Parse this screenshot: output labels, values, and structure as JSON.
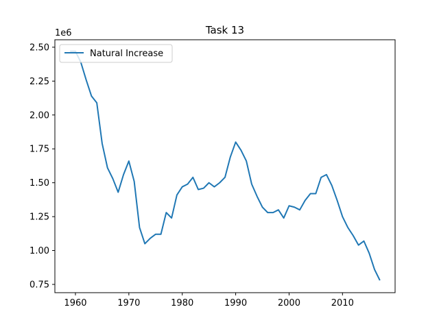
{
  "chart_data": {
    "type": "line",
    "title": "Task 13",
    "xlabel": "",
    "ylabel": "",
    "y_offset_label": "1e6",
    "xlim": [
      1956.15,
      2019.85
    ],
    "ylim": [
      0.689,
      2.555
    ],
    "x_ticks": [
      1960,
      1970,
      1980,
      1990,
      2000,
      2010
    ],
    "y_ticks": [
      0.75,
      1.0,
      1.25,
      1.5,
      1.75,
      2.0,
      2.25,
      2.5
    ],
    "y_tick_labels": [
      "0.75",
      "1.00",
      "1.25",
      "1.50",
      "1.75",
      "2.00",
      "2.25",
      "2.50"
    ],
    "grid": false,
    "legend_position": "upper-left",
    "color": "#1f77b4",
    "series": [
      {
        "name": "Natural Increase",
        "x": [
          1959,
          1960,
          1961,
          1962,
          1963,
          1964,
          1965,
          1966,
          1967,
          1968,
          1969,
          1970,
          1971,
          1972,
          1973,
          1974,
          1975,
          1976,
          1977,
          1978,
          1979,
          1980,
          1981,
          1982,
          1983,
          1984,
          1985,
          1986,
          1987,
          1988,
          1989,
          1990,
          1991,
          1992,
          1993,
          1994,
          1995,
          1996,
          1997,
          1998,
          1999,
          2000,
          2001,
          2002,
          2003,
          2004,
          2005,
          2006,
          2007,
          2008,
          2009,
          2010,
          2011,
          2012,
          2013,
          2014,
          2015,
          2016,
          2017
        ],
        "values": [
          2.47,
          2.47,
          2.39,
          2.26,
          2.14,
          2.09,
          1.79,
          1.61,
          1.53,
          1.43,
          1.56,
          1.66,
          1.51,
          1.17,
          1.05,
          1.09,
          1.12,
          1.12,
          1.28,
          1.24,
          1.41,
          1.47,
          1.49,
          1.54,
          1.45,
          1.46,
          1.5,
          1.47,
          1.5,
          1.54,
          1.69,
          1.8,
          1.74,
          1.66,
          1.49,
          1.4,
          1.32,
          1.28,
          1.28,
          1.3,
          1.24,
          1.33,
          1.32,
          1.3,
          1.37,
          1.42,
          1.42,
          1.54,
          1.56,
          1.48,
          1.37,
          1.25,
          1.17,
          1.11,
          1.04,
          1.07,
          0.98,
          0.86,
          0.78
        ]
      }
    ]
  }
}
